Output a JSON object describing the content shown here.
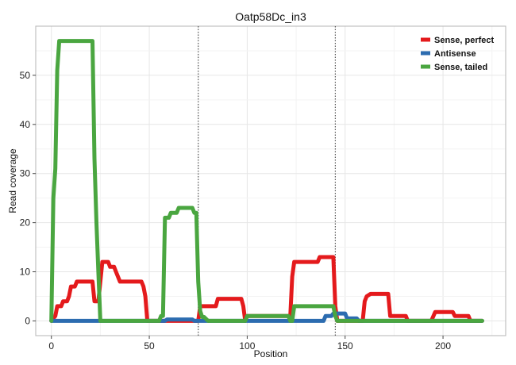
{
  "chart_data": {
    "type": "line",
    "title": "Oatp58Dc_in3",
    "xlabel": "Position",
    "ylabel": "Read coverage",
    "xlim": [
      -8,
      232
    ],
    "ylim": [
      -3,
      60
    ],
    "xticks": [
      0,
      50,
      100,
      150,
      200
    ],
    "yticks": [
      0,
      10,
      20,
      30,
      40,
      50
    ],
    "xtick_labels": [
      "0",
      "50",
      "100",
      "150",
      "200"
    ],
    "ytick_labels": [
      "0",
      "10",
      "20",
      "30",
      "40",
      "50"
    ],
    "grid": true,
    "legend_position": "top-right",
    "vlines": [
      75,
      145
    ],
    "series": [
      {
        "name": "Sense, perfect",
        "color": "#e41a1c",
        "points": [
          [
            0,
            0
          ],
          [
            2,
            1
          ],
          [
            3,
            3
          ],
          [
            5,
            3
          ],
          [
            6,
            4
          ],
          [
            8,
            4
          ],
          [
            9,
            5
          ],
          [
            10,
            7
          ],
          [
            12,
            7
          ],
          [
            13,
            8
          ],
          [
            21,
            8
          ],
          [
            22,
            4
          ],
          [
            24,
            4
          ],
          [
            25,
            8
          ],
          [
            26,
            12
          ],
          [
            29,
            12
          ],
          [
            30,
            11
          ],
          [
            32,
            11
          ],
          [
            33,
            10
          ],
          [
            34,
            9
          ],
          [
            35,
            8
          ],
          [
            46,
            8
          ],
          [
            47,
            7
          ],
          [
            48,
            5
          ],
          [
            49,
            0
          ],
          [
            75,
            0
          ],
          [
            76,
            3
          ],
          [
            84,
            3
          ],
          [
            85,
            4.5
          ],
          [
            97,
            4.5
          ],
          [
            98,
            3
          ],
          [
            99,
            0
          ],
          [
            100,
            1
          ],
          [
            122,
            1
          ],
          [
            123,
            9
          ],
          [
            124,
            12
          ],
          [
            136,
            12
          ],
          [
            137,
            13
          ],
          [
            144,
            13
          ],
          [
            145,
            3
          ],
          [
            146,
            0
          ],
          [
            159,
            0
          ],
          [
            160,
            4
          ],
          [
            161,
            5
          ],
          [
            163,
            5.5
          ],
          [
            172,
            5.5
          ],
          [
            173,
            1
          ],
          [
            181,
            1
          ],
          [
            182,
            0
          ],
          [
            194,
            0
          ],
          [
            196,
            1.8
          ],
          [
            205,
            1.8
          ],
          [
            206,
            1
          ],
          [
            213,
            1
          ],
          [
            214,
            0
          ],
          [
            220,
            0
          ]
        ]
      },
      {
        "name": "Antisense",
        "color": "#2c6cb0",
        "points": [
          [
            0,
            0
          ],
          [
            58,
            0
          ],
          [
            59,
            0.3
          ],
          [
            72,
            0.3
          ],
          [
            73,
            0
          ],
          [
            139,
            0
          ],
          [
            140,
            1
          ],
          [
            143,
            1
          ],
          [
            144,
            1.5
          ],
          [
            150,
            1.5
          ],
          [
            151,
            0.5
          ],
          [
            156,
            0.5
          ],
          [
            157,
            0
          ],
          [
            220,
            0
          ]
        ]
      },
      {
        "name": "Sense, tailed",
        "color": "#4aa640",
        "points": [
          [
            0,
            0
          ],
          [
            1,
            25
          ],
          [
            2,
            31
          ],
          [
            3,
            51
          ],
          [
            4,
            57
          ],
          [
            21,
            57
          ],
          [
            22,
            33
          ],
          [
            23,
            20
          ],
          [
            24,
            10
          ],
          [
            25,
            0
          ],
          [
            55,
            0
          ],
          [
            56,
            1
          ],
          [
            57,
            1
          ],
          [
            58,
            21
          ],
          [
            60,
            21
          ],
          [
            61,
            22
          ],
          [
            64,
            22
          ],
          [
            65,
            23
          ],
          [
            72,
            23
          ],
          [
            73,
            22
          ],
          [
            74,
            22
          ],
          [
            75,
            8
          ],
          [
            76,
            2
          ],
          [
            77,
            0.8
          ],
          [
            78,
            0.8
          ],
          [
            80,
            0
          ],
          [
            99,
            0
          ],
          [
            100,
            1
          ],
          [
            121,
            1
          ],
          [
            122,
            0
          ],
          [
            123,
            0
          ],
          [
            124,
            3
          ],
          [
            144,
            3
          ],
          [
            145,
            1
          ],
          [
            146,
            0
          ],
          [
            220,
            0
          ]
        ]
      }
    ]
  }
}
